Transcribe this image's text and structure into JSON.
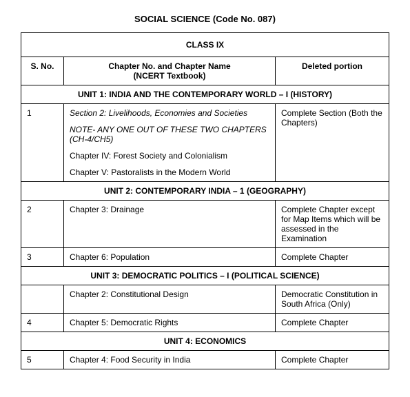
{
  "title": "SOCIAL SCIENCE (Code No. 087)",
  "class_header": "CLASS IX",
  "columns": {
    "sno": "S. No.",
    "chapter_line1": "Chapter No. and Chapter Name",
    "chapter_line2": "(NCERT Textbook)",
    "deleted": "Deleted portion"
  },
  "units": [
    {
      "title": "UNIT 1: INDIA AND THE CONTEMPORARY WORLD – I (HISTORY)",
      "rows": [
        {
          "sno": "1",
          "section": "Section 2: Livelihoods, Economies and Societies",
          "note": "NOTE- ANY ONE OUT OF THESE TWO CHAPTERS (CH-4/CH5)",
          "chapters": [
            "Chapter IV: Forest Society and Colonialism",
            "Chapter V: Pastoralists in the Modern World"
          ],
          "deleted": "Complete Section (Both the Chapters)"
        }
      ]
    },
    {
      "title": "UNIT 2: CONTEMPORARY INDIA – 1 (GEOGRAPHY)",
      "rows": [
        {
          "sno": "2",
          "chapter": "Chapter 3: Drainage",
          "deleted": "Complete Chapter except for Map Items which will be assessed in the Examination"
        },
        {
          "sno": "3",
          "chapter": "Chapter 6: Population",
          "deleted": "Complete Chapter"
        }
      ]
    },
    {
      "title": "UNIT 3: DEMOCRATIC POLITICS – I (POLITICAL SCIENCE)",
      "rows": [
        {
          "sno": "",
          "chapter": "Chapter 2: Constitutional Design",
          "deleted": "Democratic Constitution in South Africa (Only)"
        },
        {
          "sno": "4",
          "chapter": "Chapter 5: Democratic Rights",
          "deleted": "Complete Chapter"
        }
      ]
    },
    {
      "title": "UNIT 4: ECONOMICS",
      "rows": [
        {
          "sno": "5",
          "chapter": "Chapter 4: Food Security in India",
          "deleted": "Complete Chapter"
        }
      ]
    }
  ]
}
